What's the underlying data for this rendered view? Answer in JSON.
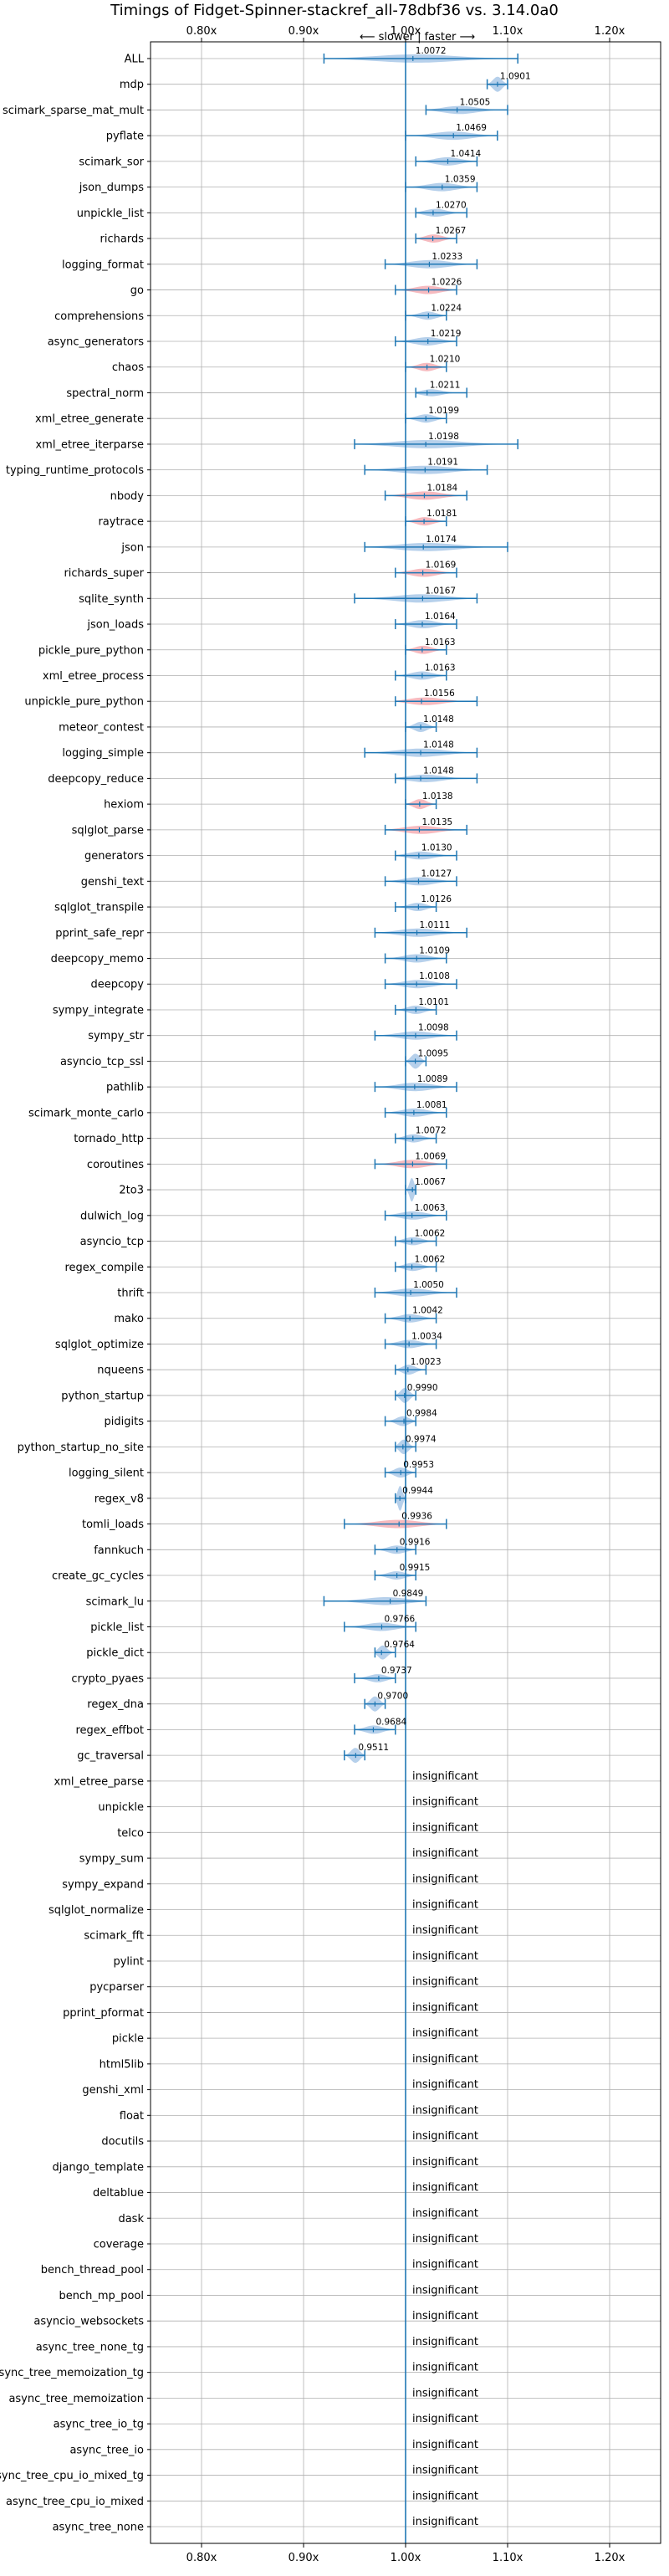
{
  "chart_data": {
    "type": "violin",
    "title": "Timings of Fidget-Spinner-stackref_all-78dbf36 vs. 3.14.0a0",
    "annotation": "⟵ slower | faster ⟶",
    "xticks": [
      "0.80x",
      "0.90x",
      "1.00x",
      "1.10x",
      "1.20x"
    ],
    "xlim": [
      0.75,
      1.25
    ],
    "reference_line": 1.0,
    "grid": true,
    "insignificant_label": "insignificant",
    "colors": {
      "faster": "#a9c8e8",
      "slower": "#f4aeb4",
      "line": "#1f77b4"
    },
    "benchmarks": [
      {
        "name": "ALL",
        "value": 1.0072,
        "label": "1.0072",
        "lo": 0.92,
        "hi": 1.11,
        "sig": true,
        "color": "faster"
      },
      {
        "name": "mdp",
        "value": 1.0901,
        "label": "1.0901",
        "lo": 1.08,
        "hi": 1.1,
        "sig": true,
        "color": "faster"
      },
      {
        "name": "scimark_sparse_mat_mult",
        "value": 1.0505,
        "label": "1.0505",
        "lo": 1.02,
        "hi": 1.1,
        "sig": true,
        "color": "faster"
      },
      {
        "name": "pyflate",
        "value": 1.0469,
        "label": "1.0469",
        "lo": 1.0,
        "hi": 1.09,
        "sig": true,
        "color": "faster"
      },
      {
        "name": "scimark_sor",
        "value": 1.0414,
        "label": "1.0414",
        "lo": 1.01,
        "hi": 1.07,
        "sig": true,
        "color": "faster"
      },
      {
        "name": "json_dumps",
        "value": 1.0359,
        "label": "1.0359",
        "lo": 1.0,
        "hi": 1.07,
        "sig": true,
        "color": "faster"
      },
      {
        "name": "unpickle_list",
        "value": 1.027,
        "label": "1.0270",
        "lo": 1.01,
        "hi": 1.06,
        "sig": true,
        "color": "faster"
      },
      {
        "name": "richards",
        "value": 1.0267,
        "label": "1.0267",
        "lo": 1.01,
        "hi": 1.05,
        "sig": true,
        "color": "slower"
      },
      {
        "name": "logging_format",
        "value": 1.0233,
        "label": "1.0233",
        "lo": 0.98,
        "hi": 1.07,
        "sig": true,
        "color": "faster"
      },
      {
        "name": "go",
        "value": 1.0226,
        "label": "1.0226",
        "lo": 0.99,
        "hi": 1.05,
        "sig": true,
        "color": "slower"
      },
      {
        "name": "comprehensions",
        "value": 1.0224,
        "label": "1.0224",
        "lo": 1.0,
        "hi": 1.04,
        "sig": true,
        "color": "faster"
      },
      {
        "name": "async_generators",
        "value": 1.0219,
        "label": "1.0219",
        "lo": 0.99,
        "hi": 1.05,
        "sig": true,
        "color": "faster"
      },
      {
        "name": "chaos",
        "value": 1.021,
        "label": "1.0210",
        "lo": 1.0,
        "hi": 1.04,
        "sig": true,
        "color": "slower"
      },
      {
        "name": "spectral_norm",
        "value": 1.0211,
        "label": "1.0211",
        "lo": 1.01,
        "hi": 1.06,
        "sig": true,
        "color": "faster"
      },
      {
        "name": "xml_etree_generate",
        "value": 1.0199,
        "label": "1.0199",
        "lo": 1.0,
        "hi": 1.04,
        "sig": true,
        "color": "faster"
      },
      {
        "name": "xml_etree_iterparse",
        "value": 1.0198,
        "label": "1.0198",
        "lo": 0.95,
        "hi": 1.11,
        "sig": true,
        "color": "faster"
      },
      {
        "name": "typing_runtime_protocols",
        "value": 1.0191,
        "label": "1.0191",
        "lo": 0.96,
        "hi": 1.08,
        "sig": true,
        "color": "faster"
      },
      {
        "name": "nbody",
        "value": 1.0184,
        "label": "1.0184",
        "lo": 0.98,
        "hi": 1.06,
        "sig": true,
        "color": "slower"
      },
      {
        "name": "raytrace",
        "value": 1.0181,
        "label": "1.0181",
        "lo": 1.0,
        "hi": 1.04,
        "sig": true,
        "color": "slower"
      },
      {
        "name": "json",
        "value": 1.0174,
        "label": "1.0174",
        "lo": 0.96,
        "hi": 1.1,
        "sig": true,
        "color": "faster"
      },
      {
        "name": "richards_super",
        "value": 1.0169,
        "label": "1.0169",
        "lo": 0.99,
        "hi": 1.05,
        "sig": true,
        "color": "slower"
      },
      {
        "name": "sqlite_synth",
        "value": 1.0167,
        "label": "1.0167",
        "lo": 0.95,
        "hi": 1.07,
        "sig": true,
        "color": "faster"
      },
      {
        "name": "json_loads",
        "value": 1.0164,
        "label": "1.0164",
        "lo": 0.99,
        "hi": 1.05,
        "sig": true,
        "color": "faster"
      },
      {
        "name": "pickle_pure_python",
        "value": 1.0163,
        "label": "1.0163",
        "lo": 1.0,
        "hi": 1.04,
        "sig": true,
        "color": "slower"
      },
      {
        "name": "xml_etree_process",
        "value": 1.0163,
        "label": "1.0163",
        "lo": 0.99,
        "hi": 1.04,
        "sig": true,
        "color": "faster"
      },
      {
        "name": "unpickle_pure_python",
        "value": 1.0156,
        "label": "1.0156",
        "lo": 0.99,
        "hi": 1.07,
        "sig": true,
        "color": "slower"
      },
      {
        "name": "meteor_contest",
        "value": 1.0148,
        "label": "1.0148",
        "lo": 1.0,
        "hi": 1.03,
        "sig": true,
        "color": "faster"
      },
      {
        "name": "logging_simple",
        "value": 1.0148,
        "label": "1.0148",
        "lo": 0.96,
        "hi": 1.07,
        "sig": true,
        "color": "faster"
      },
      {
        "name": "deepcopy_reduce",
        "value": 1.0148,
        "label": "1.0148",
        "lo": 0.99,
        "hi": 1.07,
        "sig": true,
        "color": "faster"
      },
      {
        "name": "hexiom",
        "value": 1.0138,
        "label": "1.0138",
        "lo": 1.0,
        "hi": 1.03,
        "sig": true,
        "color": "slower"
      },
      {
        "name": "sqlglot_parse",
        "value": 1.0135,
        "label": "1.0135",
        "lo": 0.98,
        "hi": 1.06,
        "sig": true,
        "color": "slower"
      },
      {
        "name": "generators",
        "value": 1.013,
        "label": "1.0130",
        "lo": 0.99,
        "hi": 1.05,
        "sig": true,
        "color": "faster"
      },
      {
        "name": "genshi_text",
        "value": 1.0127,
        "label": "1.0127",
        "lo": 0.98,
        "hi": 1.05,
        "sig": true,
        "color": "faster"
      },
      {
        "name": "sqlglot_transpile",
        "value": 1.0126,
        "label": "1.0126",
        "lo": 0.99,
        "hi": 1.03,
        "sig": true,
        "color": "faster"
      },
      {
        "name": "pprint_safe_repr",
        "value": 1.0111,
        "label": "1.0111",
        "lo": 0.97,
        "hi": 1.06,
        "sig": true,
        "color": "faster"
      },
      {
        "name": "deepcopy_memo",
        "value": 1.0109,
        "label": "1.0109",
        "lo": 0.98,
        "hi": 1.04,
        "sig": true,
        "color": "faster"
      },
      {
        "name": "deepcopy",
        "value": 1.0108,
        "label": "1.0108",
        "lo": 0.98,
        "hi": 1.05,
        "sig": true,
        "color": "faster"
      },
      {
        "name": "sympy_integrate",
        "value": 1.0101,
        "label": "1.0101",
        "lo": 0.99,
        "hi": 1.03,
        "sig": true,
        "color": "faster"
      },
      {
        "name": "sympy_str",
        "value": 1.0098,
        "label": "1.0098",
        "lo": 0.97,
        "hi": 1.05,
        "sig": true,
        "color": "faster"
      },
      {
        "name": "asyncio_tcp_ssl",
        "value": 1.0095,
        "label": "1.0095",
        "lo": 1.0,
        "hi": 1.02,
        "sig": true,
        "color": "faster"
      },
      {
        "name": "pathlib",
        "value": 1.0089,
        "label": "1.0089",
        "lo": 0.97,
        "hi": 1.05,
        "sig": true,
        "color": "faster"
      },
      {
        "name": "scimark_monte_carlo",
        "value": 1.0081,
        "label": "1.0081",
        "lo": 0.98,
        "hi": 1.04,
        "sig": true,
        "color": "faster"
      },
      {
        "name": "tornado_http",
        "value": 1.0072,
        "label": "1.0072",
        "lo": 0.99,
        "hi": 1.03,
        "sig": true,
        "color": "faster"
      },
      {
        "name": "coroutines",
        "value": 1.0069,
        "label": "1.0069",
        "lo": 0.97,
        "hi": 1.04,
        "sig": true,
        "color": "slower"
      },
      {
        "name": "2to3",
        "value": 1.0067,
        "label": "1.0067",
        "lo": 1.0,
        "hi": 1.01,
        "sig": true,
        "color": "faster"
      },
      {
        "name": "dulwich_log",
        "value": 1.0063,
        "label": "1.0063",
        "lo": 0.98,
        "hi": 1.04,
        "sig": true,
        "color": "faster"
      },
      {
        "name": "asyncio_tcp",
        "value": 1.0062,
        "label": "1.0062",
        "lo": 0.99,
        "hi": 1.03,
        "sig": true,
        "color": "faster"
      },
      {
        "name": "regex_compile",
        "value": 1.0062,
        "label": "1.0062",
        "lo": 0.99,
        "hi": 1.03,
        "sig": true,
        "color": "faster"
      },
      {
        "name": "thrift",
        "value": 1.005,
        "label": "1.0050",
        "lo": 0.97,
        "hi": 1.05,
        "sig": true,
        "color": "faster"
      },
      {
        "name": "mako",
        "value": 1.0042,
        "label": "1.0042",
        "lo": 0.98,
        "hi": 1.03,
        "sig": true,
        "color": "faster"
      },
      {
        "name": "sqlglot_optimize",
        "value": 1.0034,
        "label": "1.0034",
        "lo": 0.98,
        "hi": 1.03,
        "sig": true,
        "color": "faster"
      },
      {
        "name": "nqueens",
        "value": 1.0023,
        "label": "1.0023",
        "lo": 0.99,
        "hi": 1.02,
        "sig": true,
        "color": "faster"
      },
      {
        "name": "python_startup",
        "value": 0.999,
        "label": "0.9990",
        "lo": 0.99,
        "hi": 1.01,
        "sig": true,
        "color": "faster"
      },
      {
        "name": "pidigits",
        "value": 0.9984,
        "label": "0.9984",
        "lo": 0.98,
        "hi": 1.01,
        "sig": true,
        "color": "faster"
      },
      {
        "name": "python_startup_no_site",
        "value": 0.9974,
        "label": "0.9974",
        "lo": 0.99,
        "hi": 1.01,
        "sig": true,
        "color": "faster"
      },
      {
        "name": "logging_silent",
        "value": 0.9953,
        "label": "0.9953",
        "lo": 0.98,
        "hi": 1.01,
        "sig": true,
        "color": "faster"
      },
      {
        "name": "regex_v8",
        "value": 0.9944,
        "label": "0.9944",
        "lo": 0.99,
        "hi": 1.0,
        "sig": true,
        "color": "faster"
      },
      {
        "name": "tomli_loads",
        "value": 0.9936,
        "label": "0.9936",
        "lo": 0.94,
        "hi": 1.04,
        "sig": true,
        "color": "slower"
      },
      {
        "name": "fannkuch",
        "value": 0.9916,
        "label": "0.9916",
        "lo": 0.97,
        "hi": 1.01,
        "sig": true,
        "color": "faster"
      },
      {
        "name": "create_gc_cycles",
        "value": 0.9915,
        "label": "0.9915",
        "lo": 0.97,
        "hi": 1.01,
        "sig": true,
        "color": "faster"
      },
      {
        "name": "scimark_lu",
        "value": 0.9849,
        "label": "0.9849",
        "lo": 0.92,
        "hi": 1.02,
        "sig": true,
        "color": "faster"
      },
      {
        "name": "pickle_list",
        "value": 0.9766,
        "label": "0.9766",
        "lo": 0.94,
        "hi": 1.01,
        "sig": true,
        "color": "faster"
      },
      {
        "name": "pickle_dict",
        "value": 0.9764,
        "label": "0.9764",
        "lo": 0.97,
        "hi": 0.99,
        "sig": true,
        "color": "faster"
      },
      {
        "name": "crypto_pyaes",
        "value": 0.9737,
        "label": "0.9737",
        "lo": 0.95,
        "hi": 0.99,
        "sig": true,
        "color": "faster"
      },
      {
        "name": "regex_dna",
        "value": 0.97,
        "label": "0.9700",
        "lo": 0.96,
        "hi": 0.98,
        "sig": true,
        "color": "faster"
      },
      {
        "name": "regex_effbot",
        "value": 0.9684,
        "label": "0.9684",
        "lo": 0.95,
        "hi": 0.99,
        "sig": true,
        "color": "faster"
      },
      {
        "name": "gc_traversal",
        "value": 0.9511,
        "label": "0.9511",
        "lo": 0.94,
        "hi": 0.96,
        "sig": true,
        "color": "faster"
      },
      {
        "name": "xml_etree_parse",
        "sig": false
      },
      {
        "name": "unpickle",
        "sig": false
      },
      {
        "name": "telco",
        "sig": false
      },
      {
        "name": "sympy_sum",
        "sig": false
      },
      {
        "name": "sympy_expand",
        "sig": false
      },
      {
        "name": "sqlglot_normalize",
        "sig": false
      },
      {
        "name": "scimark_fft",
        "sig": false
      },
      {
        "name": "pylint",
        "sig": false
      },
      {
        "name": "pycparser",
        "sig": false
      },
      {
        "name": "pprint_pformat",
        "sig": false
      },
      {
        "name": "pickle",
        "sig": false
      },
      {
        "name": "html5lib",
        "sig": false
      },
      {
        "name": "genshi_xml",
        "sig": false
      },
      {
        "name": "float",
        "sig": false
      },
      {
        "name": "docutils",
        "sig": false
      },
      {
        "name": "django_template",
        "sig": false
      },
      {
        "name": "deltablue",
        "sig": false
      },
      {
        "name": "dask",
        "sig": false
      },
      {
        "name": "coverage",
        "sig": false
      },
      {
        "name": "bench_thread_pool",
        "sig": false
      },
      {
        "name": "bench_mp_pool",
        "sig": false
      },
      {
        "name": "asyncio_websockets",
        "sig": false
      },
      {
        "name": "async_tree_none_tg",
        "sig": false
      },
      {
        "name": "async_tree_memoization_tg",
        "sig": false
      },
      {
        "name": "async_tree_memoization",
        "sig": false
      },
      {
        "name": "async_tree_io_tg",
        "sig": false
      },
      {
        "name": "async_tree_io",
        "sig": false
      },
      {
        "name": "async_tree_cpu_io_mixed_tg",
        "sig": false
      },
      {
        "name": "async_tree_cpu_io_mixed",
        "sig": false
      },
      {
        "name": "async_tree_none",
        "sig": false
      }
    ]
  }
}
